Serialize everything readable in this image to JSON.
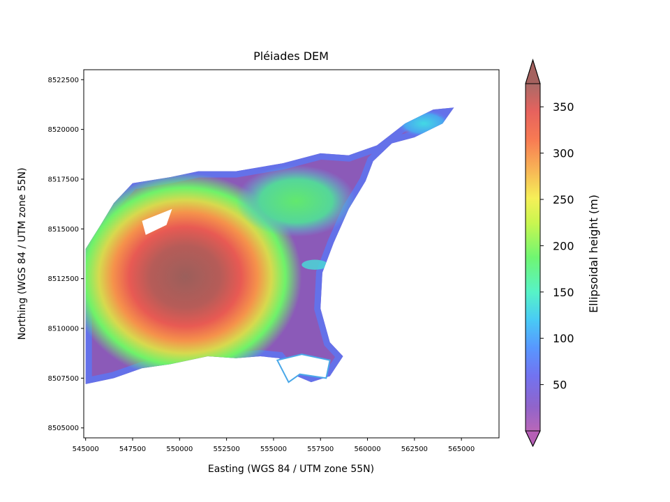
{
  "chart_data": {
    "type": "heatmap",
    "title": "Pléiades DEM",
    "xlabel": "Easting (WGS 84 / UTM zone 55N)",
    "ylabel": "Northing (WGS 84 / UTM zone 55N)",
    "xlim": [
      544900,
      567000
    ],
    "ylim": [
      8504500,
      8523000
    ],
    "x_ticks": [
      545000,
      547500,
      550000,
      552500,
      555000,
      557500,
      560000,
      562500,
      565000
    ],
    "x_tick_labels": [
      "545000",
      "547500",
      "550000",
      "552500",
      "555000",
      "557500",
      "560000",
      "562500",
      "565000"
    ],
    "y_ticks": [
      8505000,
      8507500,
      8510000,
      8512500,
      8515000,
      8517500,
      8520000,
      8522500
    ],
    "y_tick_labels": [
      "8505000",
      "8507500",
      "8510000",
      "8512500",
      "8515000",
      "8517500",
      "8520000",
      "8522500"
    ],
    "colorbar": {
      "label": "Ellipsoidal height (m)",
      "range": [
        0,
        375
      ],
      "extend": "both",
      "ticks": [
        50,
        100,
        150,
        200,
        250,
        300,
        350
      ],
      "tick_labels": [
        "50",
        "100",
        "150",
        "200",
        "250",
        "300",
        "350"
      ],
      "colormap": "turbo",
      "alpha": 0.6
    },
    "peak_elevation_approx": 360,
    "peak_location_approx": [
      550000,
      8512500
    ],
    "grid": false
  }
}
